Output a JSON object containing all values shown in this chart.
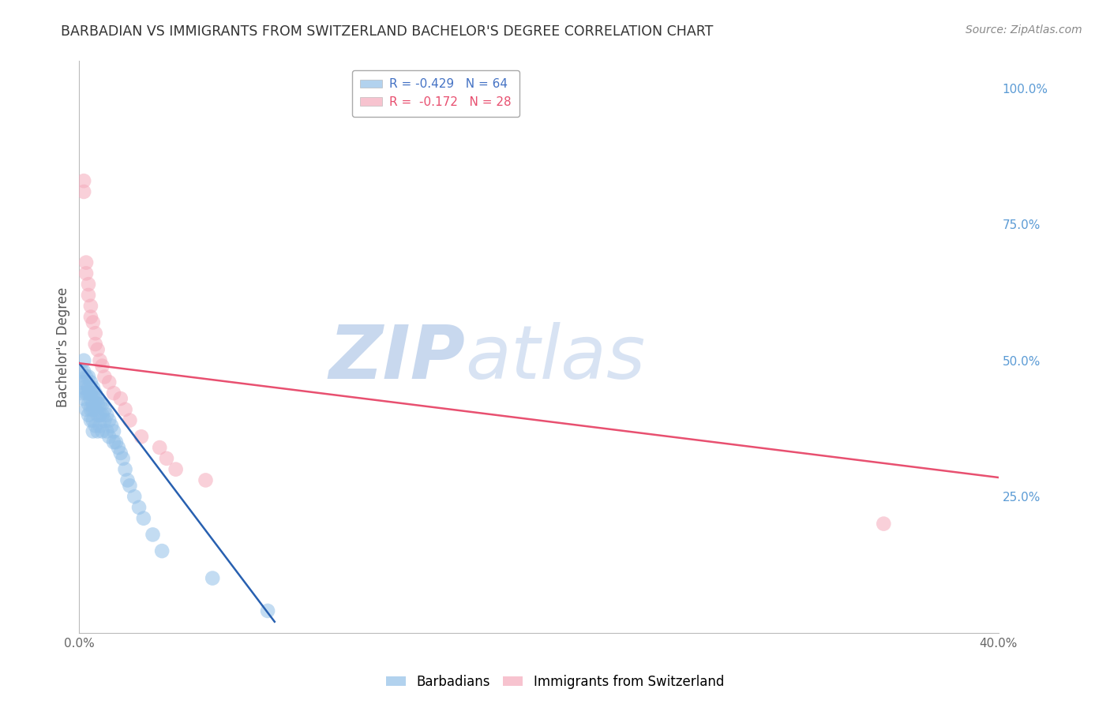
{
  "title": "BARBADIAN VS IMMIGRANTS FROM SWITZERLAND BACHELOR'S DEGREE CORRELATION CHART",
  "source": "Source: ZipAtlas.com",
  "ylabel": "Bachelor's Degree",
  "right_ytick_labels": [
    "100.0%",
    "75.0%",
    "50.0%",
    "25.0%"
  ],
  "right_ytick_values": [
    1.0,
    0.75,
    0.5,
    0.25
  ],
  "xlim": [
    0.0,
    0.4
  ],
  "ylim": [
    0.0,
    1.05
  ],
  "xtick_labels": [
    "0.0%",
    "",
    "",
    "",
    "40.0%"
  ],
  "xtick_values": [
    0.0,
    0.1,
    0.2,
    0.3,
    0.4
  ],
  "blue_color": "#92C0E8",
  "pink_color": "#F5AABB",
  "blue_line_color": "#2860B0",
  "pink_line_color": "#E85070",
  "background_color": "#FFFFFF",
  "grid_color": "#BBBBBB",
  "barbadians_x": [
    0.001,
    0.001,
    0.001,
    0.002,
    0.002,
    0.002,
    0.002,
    0.003,
    0.003,
    0.003,
    0.003,
    0.004,
    0.004,
    0.004,
    0.004,
    0.004,
    0.005,
    0.005,
    0.005,
    0.005,
    0.005,
    0.006,
    0.006,
    0.006,
    0.006,
    0.006,
    0.006,
    0.007,
    0.007,
    0.007,
    0.007,
    0.008,
    0.008,
    0.008,
    0.008,
    0.009,
    0.009,
    0.009,
    0.01,
    0.01,
    0.01,
    0.011,
    0.011,
    0.012,
    0.012,
    0.013,
    0.013,
    0.014,
    0.015,
    0.015,
    0.016,
    0.017,
    0.018,
    0.019,
    0.02,
    0.021,
    0.022,
    0.024,
    0.026,
    0.028,
    0.032,
    0.036,
    0.058,
    0.082
  ],
  "barbadians_y": [
    0.48,
    0.46,
    0.44,
    0.5,
    0.48,
    0.45,
    0.43,
    0.47,
    0.46,
    0.44,
    0.41,
    0.47,
    0.45,
    0.44,
    0.42,
    0.4,
    0.46,
    0.44,
    0.43,
    0.41,
    0.39,
    0.45,
    0.44,
    0.42,
    0.41,
    0.39,
    0.37,
    0.44,
    0.43,
    0.41,
    0.38,
    0.43,
    0.42,
    0.4,
    0.37,
    0.42,
    0.4,
    0.38,
    0.42,
    0.4,
    0.37,
    0.41,
    0.39,
    0.4,
    0.37,
    0.39,
    0.36,
    0.38,
    0.37,
    0.35,
    0.35,
    0.34,
    0.33,
    0.32,
    0.3,
    0.28,
    0.27,
    0.25,
    0.23,
    0.21,
    0.18,
    0.15,
    0.1,
    0.04
  ],
  "switzerland_x": [
    0.002,
    0.002,
    0.003,
    0.003,
    0.004,
    0.004,
    0.005,
    0.005,
    0.006,
    0.007,
    0.007,
    0.008,
    0.009,
    0.01,
    0.011,
    0.013,
    0.015,
    0.018,
    0.02,
    0.022,
    0.027,
    0.035,
    0.038,
    0.042,
    0.055,
    0.35
  ],
  "switzerland_y": [
    0.83,
    0.81,
    0.68,
    0.66,
    0.64,
    0.62,
    0.6,
    0.58,
    0.57,
    0.55,
    0.53,
    0.52,
    0.5,
    0.49,
    0.47,
    0.46,
    0.44,
    0.43,
    0.41,
    0.39,
    0.36,
    0.34,
    0.32,
    0.3,
    0.28,
    0.2
  ],
  "blue_line_x": [
    0.0,
    0.085
  ],
  "blue_line_y": [
    0.495,
    0.02
  ],
  "pink_line_x": [
    0.0,
    0.4
  ],
  "pink_line_y": [
    0.495,
    0.285
  ]
}
